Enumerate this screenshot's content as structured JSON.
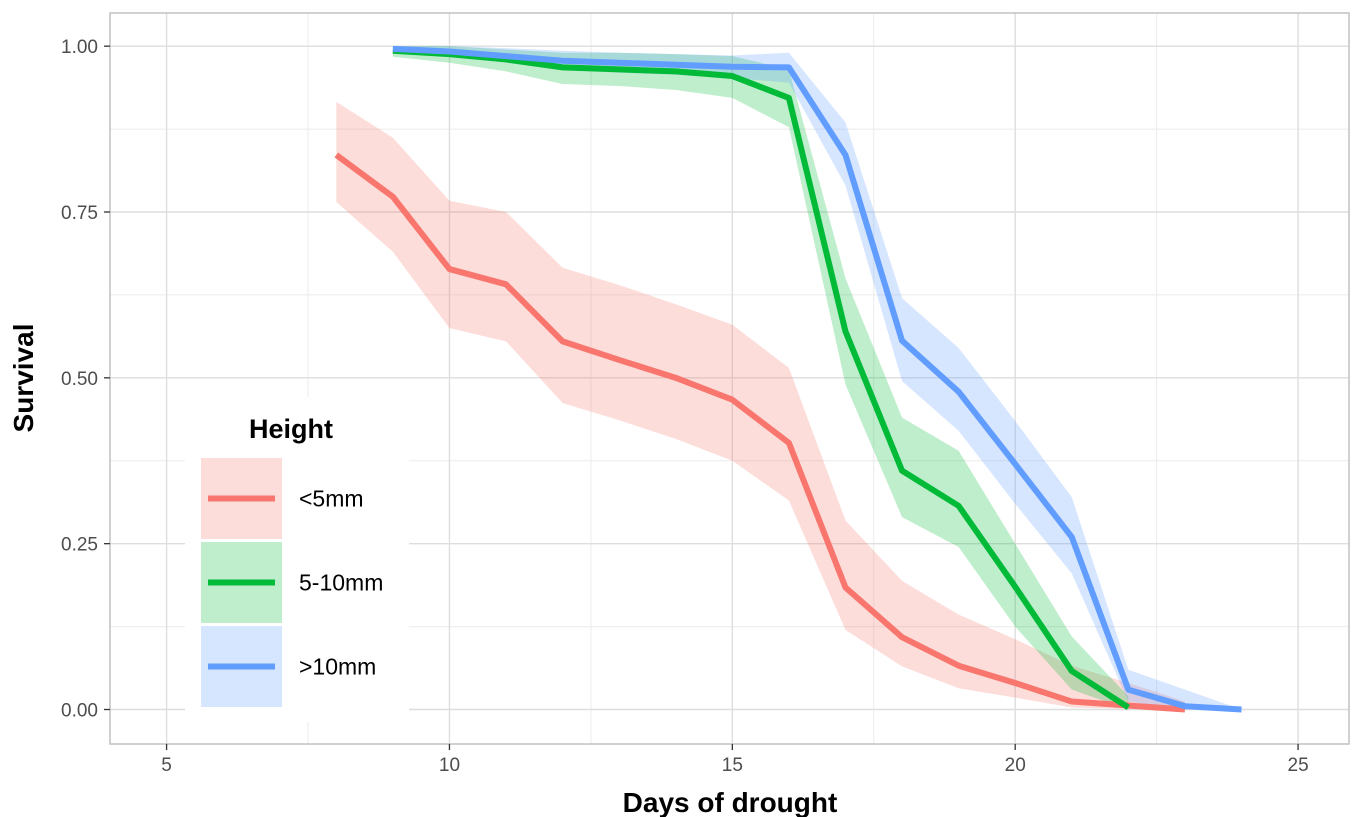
{
  "chart_data": {
    "type": "line",
    "title": "",
    "xlabel": "Days of drought",
    "ylabel": "Survival",
    "xlim": [
      4,
      25.9
    ],
    "ylim": [
      -0.052,
      1.05
    ],
    "xticks": [
      5,
      10,
      15,
      20,
      25
    ],
    "xtick_labels": [
      "5",
      "10",
      "15",
      "20",
      "25"
    ],
    "yticks": [
      0,
      0.25,
      0.5,
      0.75,
      1
    ],
    "ytick_labels": [
      "0.00",
      "0.25",
      "0.50",
      "0.75",
      "1.00"
    ],
    "grid": true,
    "legend": {
      "title": "Height",
      "position": "bottom-left"
    },
    "series": [
      {
        "name": "<5mm",
        "color": "#F8766D",
        "x": [
          8,
          9,
          10,
          11,
          12,
          13,
          14,
          15,
          16,
          17,
          18,
          19,
          20,
          21,
          22,
          23
        ],
        "y": [
          0.836,
          0.773,
          0.664,
          0.641,
          0.555,
          0.527,
          0.5,
          0.467,
          0.402,
          0.184,
          0.109,
          0.066,
          0.04,
          0.012,
          0.006,
          0.0
        ],
        "lower": [
          0.765,
          0.69,
          0.575,
          0.555,
          0.462,
          0.436,
          0.408,
          0.375,
          0.315,
          0.12,
          0.065,
          0.032,
          0.018,
          0.003,
          0.001,
          0.0
        ],
        "upper": [
          0.916,
          0.862,
          0.767,
          0.75,
          0.666,
          0.64,
          0.611,
          0.58,
          0.515,
          0.285,
          0.194,
          0.143,
          0.106,
          0.066,
          0.04,
          0.012
        ]
      },
      {
        "name": "5-10mm",
        "color": "#00BA38",
        "x": [
          9,
          10,
          11,
          12,
          13,
          14,
          15,
          16,
          17,
          18,
          19,
          20,
          21,
          22
        ],
        "y": [
          0.993,
          0.988,
          0.98,
          0.968,
          0.965,
          0.962,
          0.955,
          0.922,
          0.57,
          0.36,
          0.307,
          0.185,
          0.058,
          0.003
        ],
        "lower": [
          0.984,
          0.975,
          0.962,
          0.943,
          0.94,
          0.934,
          0.922,
          0.878,
          0.49,
          0.29,
          0.245,
          0.125,
          0.03,
          0.0
        ],
        "upper": [
          1.0,
          1.0,
          0.995,
          0.99,
          0.99,
          0.988,
          0.985,
          0.965,
          0.65,
          0.44,
          0.39,
          0.25,
          0.11,
          0.02
        ]
      },
      {
        "name": ">10mm",
        "color": "#619CFF",
        "x": [
          9,
          10,
          11,
          12,
          13,
          14,
          15,
          16,
          17,
          18,
          19,
          20,
          21,
          22,
          23,
          24
        ],
        "y": [
          0.996,
          0.992,
          0.985,
          0.978,
          0.975,
          0.972,
          0.969,
          0.968,
          0.836,
          0.556,
          0.479,
          0.37,
          0.26,
          0.03,
          0.005,
          0.0
        ],
        "lower": [
          0.99,
          0.985,
          0.975,
          0.965,
          0.96,
          0.957,
          0.952,
          0.945,
          0.79,
          0.495,
          0.42,
          0.31,
          0.205,
          0.012,
          0.0,
          0.0
        ],
        "upper": [
          1.0,
          1.0,
          0.997,
          0.993,
          0.99,
          0.988,
          0.986,
          0.99,
          0.885,
          0.62,
          0.545,
          0.435,
          0.32,
          0.06,
          0.03,
          0.0
        ]
      }
    ]
  }
}
